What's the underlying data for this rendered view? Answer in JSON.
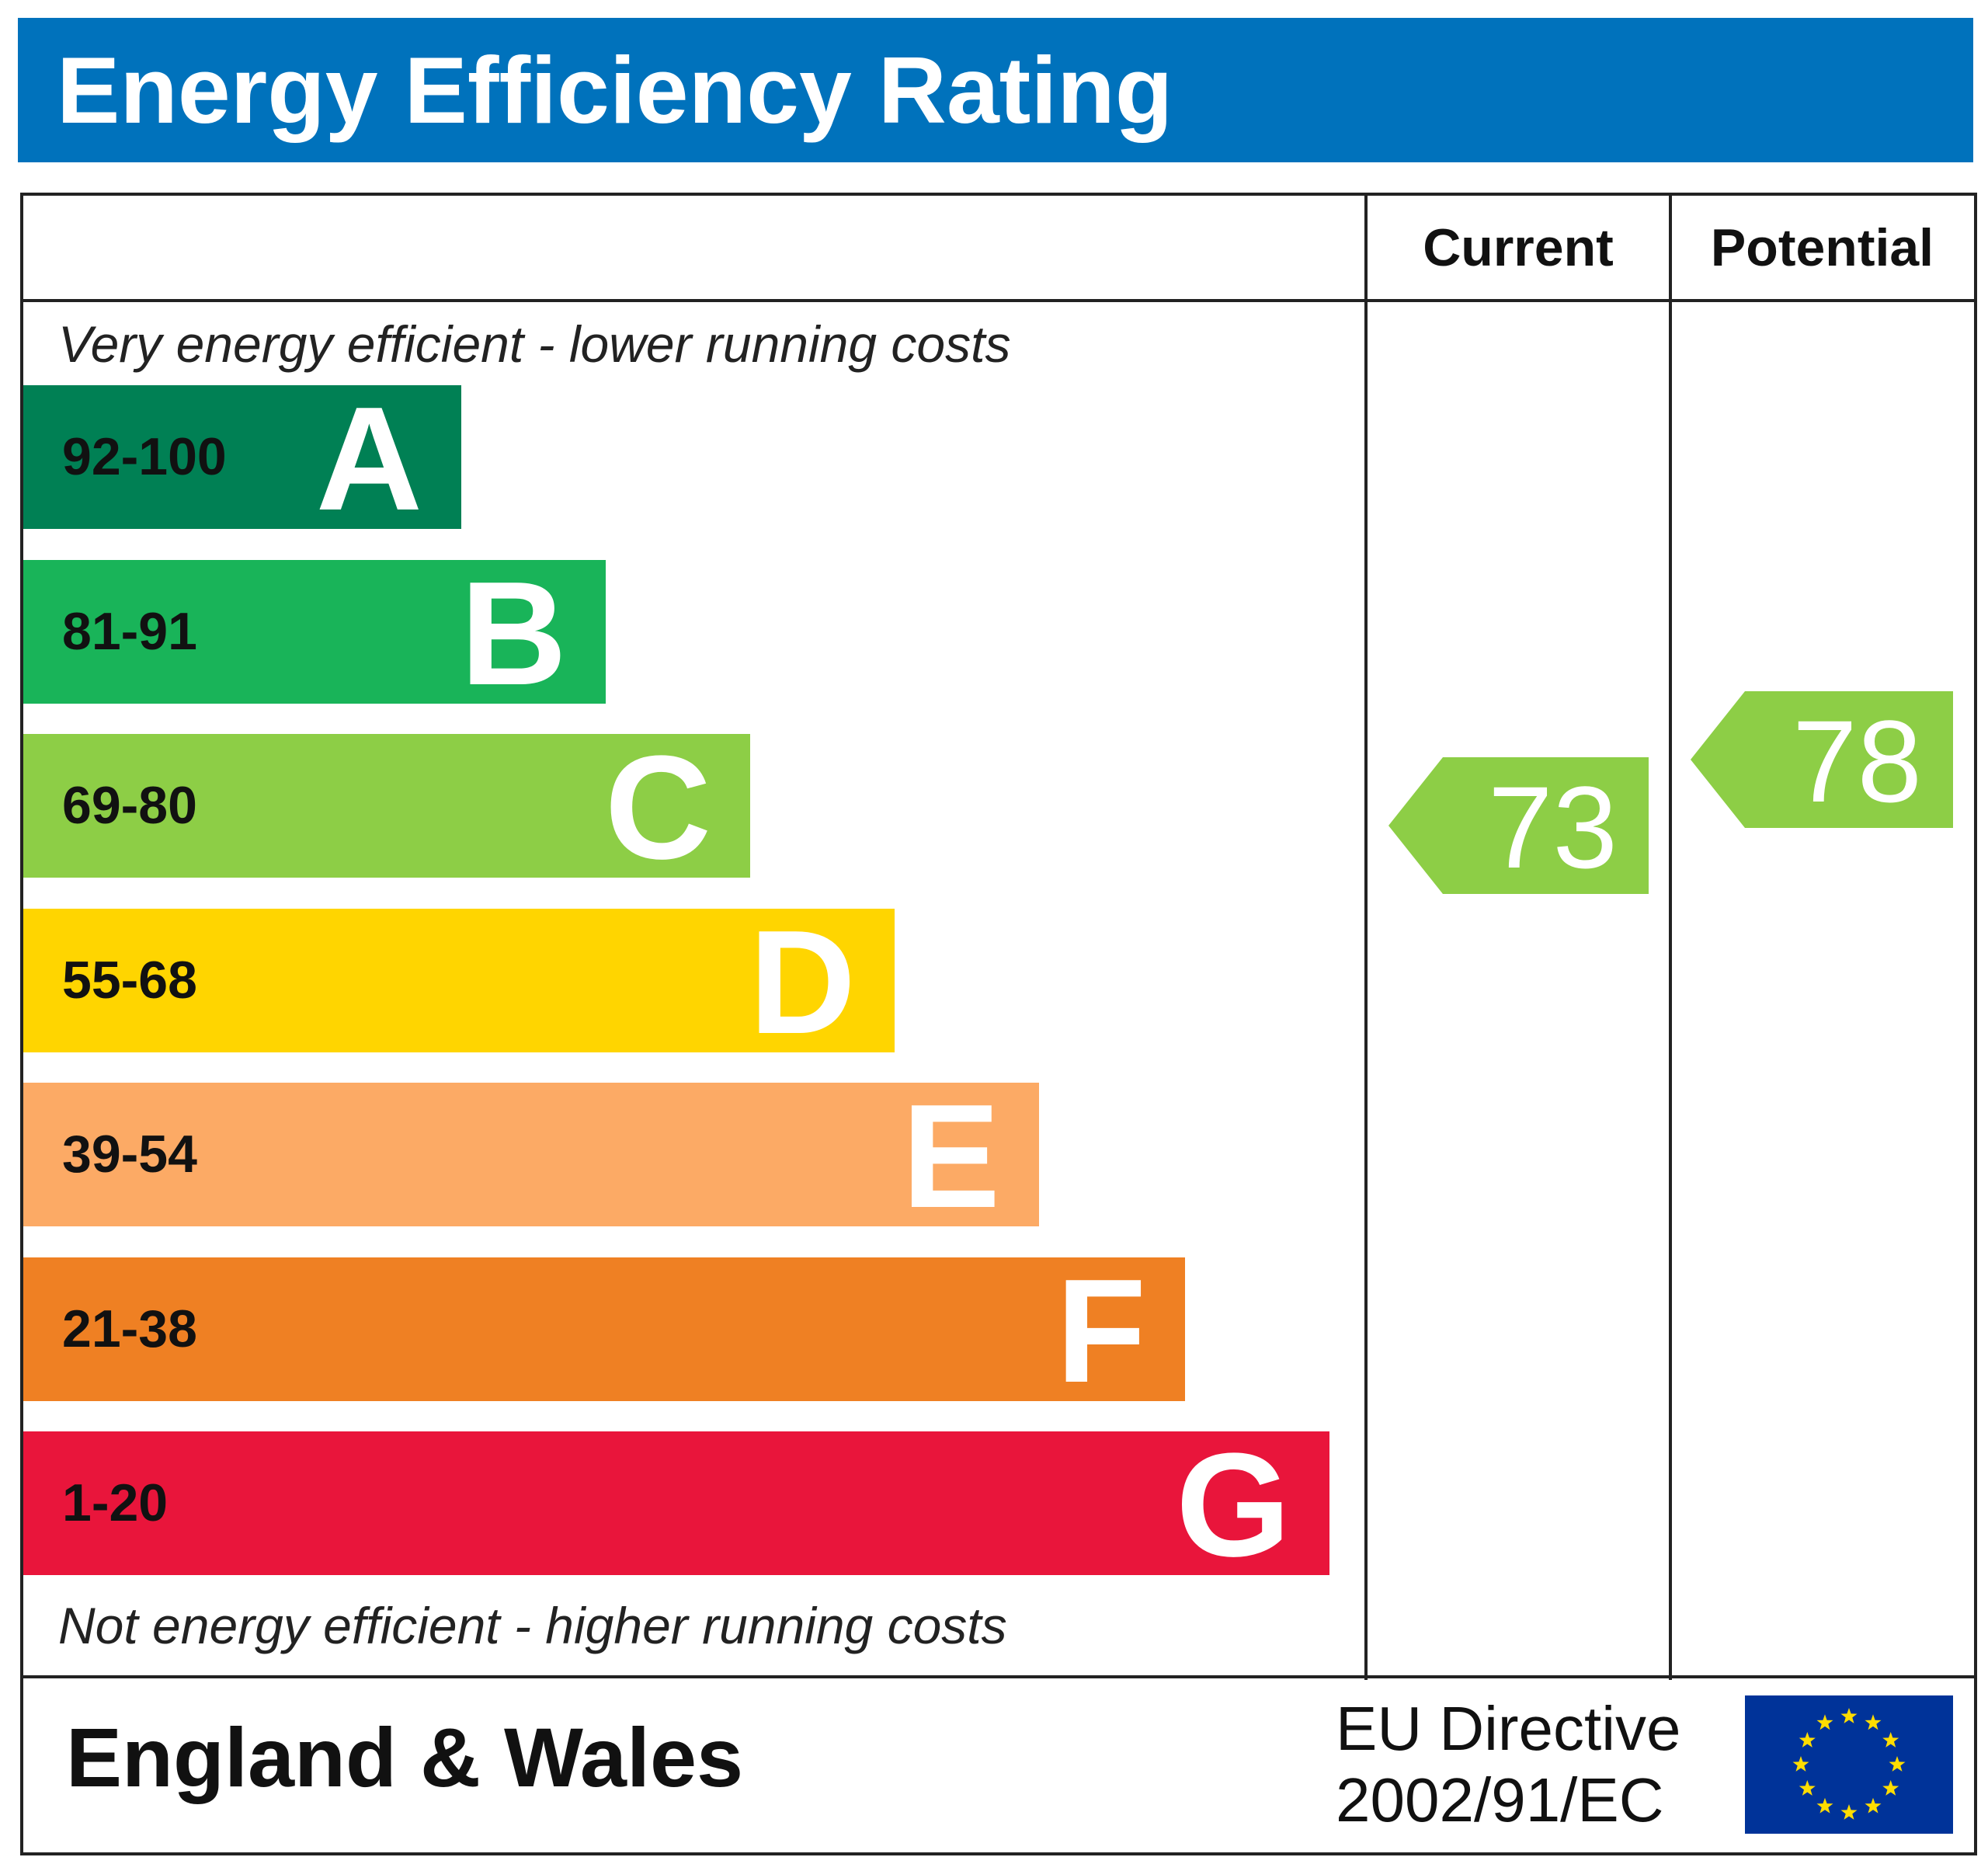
{
  "title": "Energy Efficiency Rating",
  "columns": {
    "current": "Current",
    "potential": "Potential"
  },
  "top_note": "Very energy efficient - lower running costs",
  "bottom_note": "Not energy efficient - higher running costs",
  "bands": [
    {
      "range": "92-100",
      "letter": "A",
      "color": "#008054"
    },
    {
      "range": "81-91",
      "letter": "B",
      "color": "#19b459"
    },
    {
      "range": "69-80",
      "letter": "C",
      "color": "#8dce46"
    },
    {
      "range": "55-68",
      "letter": "D",
      "color": "#ffd500"
    },
    {
      "range": "39-54",
      "letter": "E",
      "color": "#fcaa65"
    },
    {
      "range": "21-38",
      "letter": "F",
      "color": "#ef8023"
    },
    {
      "range": "1-20",
      "letter": "G",
      "color": "#e9153b"
    }
  ],
  "current_rating": {
    "value": "73",
    "band": "C",
    "color": "#8dce46"
  },
  "potential_rating": {
    "value": "78",
    "band": "C",
    "color": "#8dce46"
  },
  "footer": {
    "region": "England & Wales",
    "directive_line1": "EU Directive",
    "directive_line2": "2002/91/EC",
    "flag_icon": "eu-flag-icon"
  },
  "colors": {
    "header": "#0072bc"
  }
}
